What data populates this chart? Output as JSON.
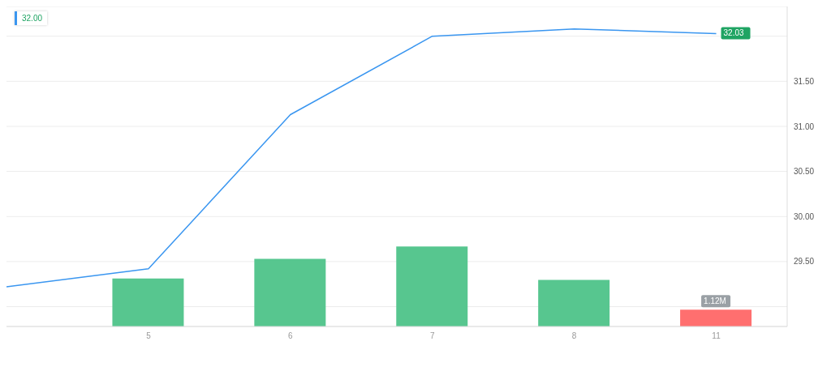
{
  "chart_data": {
    "type": "bar",
    "categories": [
      null,
      "5",
      "6",
      "7",
      "8",
      "11"
    ],
    "series": [
      {
        "type": "line",
        "color": "#3a96f0",
        "values": [
          29.22,
          29.42,
          31.13,
          32.0,
          32.08,
          32.03
        ],
        "value_labels": [
          null,
          null,
          null,
          null,
          null,
          "32.03"
        ]
      },
      {
        "axis": "y2",
        "colors": [
          "#57c68f",
          "#57c68f",
          "#57c68f",
          "#57c68f",
          "#57c68f",
          "#ff6f6f"
        ],
        "values": [
          null,
          3.21,
          4.53,
          5.35,
          3.11,
          1.12
        ],
        "value_labels": [
          null,
          null,
          null,
          null,
          null,
          "1.12M"
        ]
      }
    ],
    "ylim": [
      28.78,
      32.33
    ],
    "yticks": [
      {
        "value": 29,
        "label": null
      },
      {
        "value": 29.5,
        "label": "29.50"
      },
      {
        "value": 30,
        "label": "30.00"
      },
      {
        "value": 30.5,
        "label": "30.50"
      },
      {
        "value": 31,
        "label": "31.00"
      },
      {
        "value": 31.5,
        "label": "31.50"
      },
      {
        "value": 32,
        "label": null
      }
    ],
    "y2lim": [
      0,
      21.4
    ],
    "grid": "y",
    "marker": "none",
    "line_style": "solid",
    "annotations": [
      "32.00"
    ]
  }
}
